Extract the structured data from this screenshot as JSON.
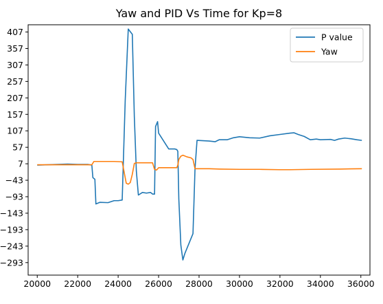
{
  "chart_data": {
    "type": "line",
    "title": "Yaw and PID Vs Time for Kp=8",
    "xlabel": "",
    "ylabel": "",
    "xlim": [
      19550,
      36450
    ],
    "ylim": [
      -331,
      429
    ],
    "xticks": [
      20000,
      22000,
      24000,
      26000,
      28000,
      30000,
      32000,
      34000,
      36000
    ],
    "xtick_labels": [
      "20000",
      "22000",
      "24000",
      "26000",
      "28000",
      "30000",
      "32000",
      "34000",
      "36000"
    ],
    "yticks": [
      407,
      357,
      307,
      257,
      207,
      157,
      107,
      57,
      7,
      -43,
      -93,
      -143,
      -193,
      -243,
      -293
    ],
    "ytick_labels": [
      "407",
      "357",
      "307",
      "257",
      "207",
      "157",
      "107",
      "57",
      "7",
      "−43",
      "−93",
      "−143",
      "−193",
      "−243",
      "−293"
    ],
    "grid": false,
    "legend_position": "top-right",
    "series": [
      {
        "name": "P value",
        "color": "#1f77b4",
        "x": [
          20000,
          20500,
          21000,
          21500,
          22000,
          22500,
          22700,
          22750,
          22850,
          22900,
          23100,
          23500,
          23800,
          24000,
          24200,
          24300,
          24350,
          24500,
          24700,
          24800,
          24900,
          25000,
          25200,
          25400,
          25600,
          25700,
          25800,
          25850,
          25950,
          26000,
          26500,
          26800,
          26900,
          26950,
          27000,
          27100,
          27200,
          27300,
          27700,
          27800,
          27900,
          28500,
          28800,
          29000,
          29400,
          29700,
          30000,
          30500,
          31000,
          31500,
          32000,
          32500,
          32700,
          32900,
          33200,
          33500,
          33800,
          34000,
          34500,
          34700,
          34900,
          35200,
          35500,
          35800,
          36050
        ],
        "y": [
          3,
          4,
          5,
          6,
          5,
          5,
          3,
          -35,
          -40,
          -115,
          -110,
          -111,
          -105,
          -105,
          -103,
          100,
          200,
          416,
          400,
          150,
          -15,
          -88,
          -80,
          -82,
          -80,
          -85,
          -85,
          120,
          135,
          100,
          52,
          52,
          50,
          45,
          -100,
          -240,
          -285,
          -265,
          -205,
          -8,
          78,
          76,
          74,
          80,
          80,
          86,
          89,
          86,
          85,
          92,
          96,
          100,
          101,
          96,
          90,
          80,
          82,
          80,
          81,
          78,
          82,
          85,
          83,
          80,
          78
        ]
      },
      {
        "name": "Yaw",
        "color": "#ff7f0e",
        "x": [
          20000,
          21000,
          22000,
          22700,
          22800,
          23300,
          23800,
          24200,
          24400,
          24500,
          24600,
          24700,
          24800,
          24900,
          25000,
          25500,
          25700,
          25800,
          25900,
          26000,
          26500,
          26900,
          26950,
          27000,
          27100,
          27200,
          27400,
          27600,
          27700,
          27800,
          28500,
          29000,
          30000,
          31000,
          32000,
          32500,
          33500,
          35000,
          36050
        ],
        "y": [
          4,
          4,
          4,
          4,
          14,
          14,
          14,
          13,
          -52,
          -55,
          -50,
          -25,
          8,
          10,
          10,
          10,
          10,
          -10,
          -12,
          -5,
          -5,
          -5,
          3,
          20,
          30,
          33,
          28,
          25,
          20,
          -8,
          -8,
          -9,
          -10,
          -10,
          -11,
          -11,
          -10,
          -9,
          -8
        ]
      }
    ]
  }
}
